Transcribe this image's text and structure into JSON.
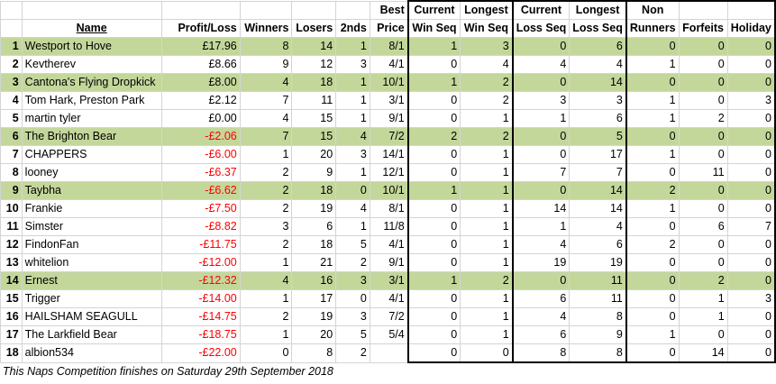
{
  "headers": {
    "top": [
      "",
      "",
      "",
      "",
      "",
      "",
      "Best",
      "Current",
      "Longest",
      "Current",
      "Longest",
      "Non",
      "",
      ""
    ],
    "bottom": [
      "",
      "Name",
      "Profit/Loss",
      "Winners",
      "Losers",
      "2nds",
      "Price",
      "Win Seq",
      "Win Seq",
      "Loss Seq",
      "Loss Seq",
      "Runners",
      "Forfeits",
      "Holiday"
    ]
  },
  "rows": [
    {
      "rank": "1",
      "name": "Westport to Hove",
      "pl": "£17.96",
      "w": "8",
      "l": "14",
      "s": "1",
      "bp": "8/1",
      "cws": "1",
      "lws": "3",
      "cls": "0",
      "lls": "6",
      "nr": "0",
      "f": "0",
      "h": "0",
      "neg": false,
      "green": true
    },
    {
      "rank": "2",
      "name": "Kevtherev",
      "pl": "£8.66",
      "w": "9",
      "l": "12",
      "s": "3",
      "bp": "4/1",
      "cws": "0",
      "lws": "4",
      "cls": "4",
      "lls": "4",
      "nr": "1",
      "f": "0",
      "h": "0",
      "neg": false,
      "green": false
    },
    {
      "rank": "3",
      "name": "Cantona's Flying Dropkick",
      "pl": "£8.00",
      "w": "4",
      "l": "18",
      "s": "1",
      "bp": "10/1",
      "cws": "1",
      "lws": "2",
      "cls": "0",
      "lls": "14",
      "nr": "0",
      "f": "0",
      "h": "0",
      "neg": false,
      "green": true
    },
    {
      "rank": "4",
      "name": "Tom Hark, Preston Park",
      "pl": "£2.12",
      "w": "7",
      "l": "11",
      "s": "1",
      "bp": "3/1",
      "cws": "0",
      "lws": "2",
      "cls": "3",
      "lls": "3",
      "nr": "1",
      "f": "0",
      "h": "3",
      "neg": false,
      "green": false
    },
    {
      "rank": "5",
      "name": "martin tyler",
      "pl": "£0.00",
      "w": "4",
      "l": "15",
      "s": "1",
      "bp": "9/1",
      "cws": "0",
      "lws": "1",
      "cls": "1",
      "lls": "6",
      "nr": "1",
      "f": "2",
      "h": "0",
      "neg": false,
      "green": false
    },
    {
      "rank": "6",
      "name": "The Brighton Bear",
      "pl": "-£2.06",
      "w": "7",
      "l": "15",
      "s": "4",
      "bp": "7/2",
      "cws": "2",
      "lws": "2",
      "cls": "0",
      "lls": "5",
      "nr": "0",
      "f": "0",
      "h": "0",
      "neg": true,
      "green": true
    },
    {
      "rank": "7",
      "name": "CHAPPERS",
      "pl": "-£6.00",
      "w": "1",
      "l": "20",
      "s": "3",
      "bp": "14/1",
      "cws": "0",
      "lws": "1",
      "cls": "0",
      "lls": "17",
      "nr": "1",
      "f": "0",
      "h": "0",
      "neg": true,
      "green": false
    },
    {
      "rank": "8",
      "name": "looney",
      "pl": "-£6.37",
      "w": "2",
      "l": "9",
      "s": "1",
      "bp": "12/1",
      "cws": "0",
      "lws": "1",
      "cls": "7",
      "lls": "7",
      "nr": "0",
      "f": "11",
      "h": "0",
      "neg": true,
      "green": false
    },
    {
      "rank": "9",
      "name": "Taybha",
      "pl": "-£6.62",
      "w": "2",
      "l": "18",
      "s": "0",
      "bp": "10/1",
      "cws": "1",
      "lws": "1",
      "cls": "0",
      "lls": "14",
      "nr": "2",
      "f": "0",
      "h": "0",
      "neg": true,
      "green": true
    },
    {
      "rank": "10",
      "name": "Frankie",
      "pl": "-£7.50",
      "w": "2",
      "l": "19",
      "s": "4",
      "bp": "8/1",
      "cws": "0",
      "lws": "1",
      "cls": "14",
      "lls": "14",
      "nr": "1",
      "f": "0",
      "h": "0",
      "neg": true,
      "green": false
    },
    {
      "rank": "11",
      "name": "Simster",
      "pl": "-£8.82",
      "w": "3",
      "l": "6",
      "s": "1",
      "bp": "11/8",
      "cws": "0",
      "lws": "1",
      "cls": "1",
      "lls": "4",
      "nr": "0",
      "f": "6",
      "h": "7",
      "neg": true,
      "green": false
    },
    {
      "rank": "12",
      "name": "FindonFan",
      "pl": "-£11.75",
      "w": "2",
      "l": "18",
      "s": "5",
      "bp": "4/1",
      "cws": "0",
      "lws": "1",
      "cls": "4",
      "lls": "6",
      "nr": "2",
      "f": "0",
      "h": "0",
      "neg": true,
      "green": false
    },
    {
      "rank": "13",
      "name": "whitelion",
      "pl": "-£12.00",
      "w": "1",
      "l": "21",
      "s": "2",
      "bp": "9/1",
      "cws": "0",
      "lws": "1",
      "cls": "19",
      "lls": "19",
      "nr": "0",
      "f": "0",
      "h": "0",
      "neg": true,
      "green": false
    },
    {
      "rank": "14",
      "name": "Ernest",
      "pl": "-£12.32",
      "w": "4",
      "l": "16",
      "s": "3",
      "bp": "3/1",
      "cws": "1",
      "lws": "2",
      "cls": "0",
      "lls": "11",
      "nr": "0",
      "f": "2",
      "h": "0",
      "neg": true,
      "green": true
    },
    {
      "rank": "15",
      "name": "Trigger",
      "pl": "-£14.00",
      "w": "1",
      "l": "17",
      "s": "0",
      "bp": "4/1",
      "cws": "0",
      "lws": "1",
      "cls": "6",
      "lls": "11",
      "nr": "0",
      "f": "1",
      "h": "3",
      "neg": true,
      "green": false
    },
    {
      "rank": "16",
      "name": "HAILSHAM SEAGULL",
      "pl": "-£14.75",
      "w": "2",
      "l": "19",
      "s": "3",
      "bp": "7/2",
      "cws": "0",
      "lws": "1",
      "cls": "4",
      "lls": "8",
      "nr": "0",
      "f": "1",
      "h": "0",
      "neg": true,
      "green": false
    },
    {
      "rank": "17",
      "name": "The Larkfield Bear",
      "pl": "-£18.75",
      "w": "1",
      "l": "20",
      "s": "5",
      "bp": "5/4",
      "cws": "0",
      "lws": "1",
      "cls": "6",
      "lls": "9",
      "nr": "1",
      "f": "0",
      "h": "0",
      "neg": true,
      "green": false
    },
    {
      "rank": "18",
      "name": "albion534",
      "pl": "-£22.00",
      "w": "0",
      "l": "8",
      "s": "2",
      "bp": "",
      "cws": "0",
      "lws": "0",
      "cls": "8",
      "lls": "8",
      "nr": "0",
      "f": "14",
      "h": "0",
      "neg": true,
      "green": false
    }
  ],
  "footer": "This Naps Competition finishes on Saturday 29th September 2018",
  "colors": {
    "highlight": "#c4d79b",
    "negative": "#ff0000",
    "grid": "#d4d4d4"
  }
}
